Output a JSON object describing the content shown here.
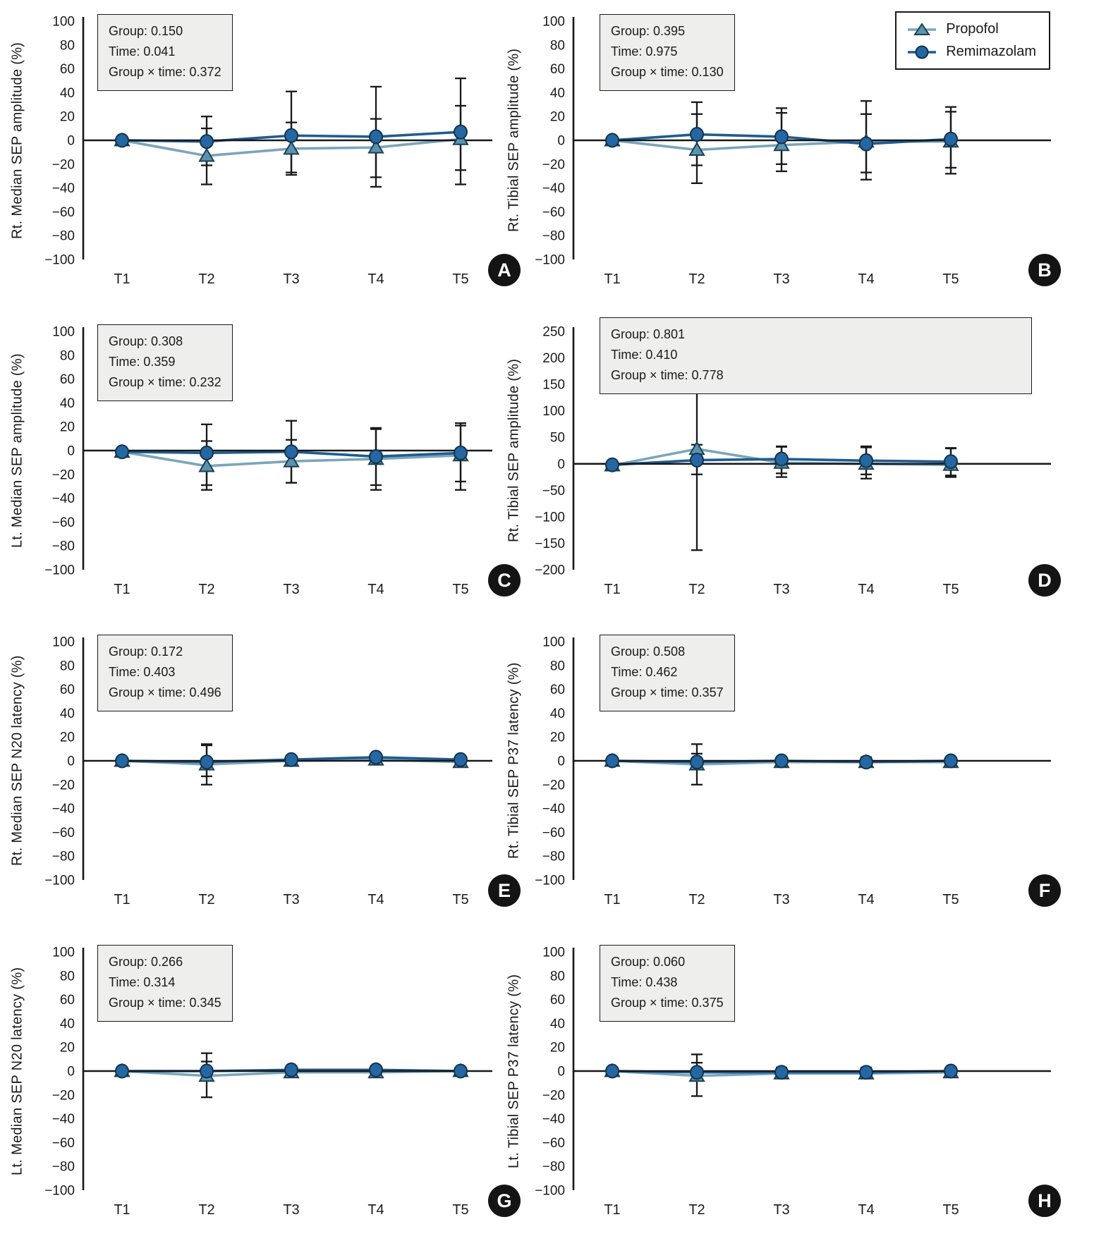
{
  "figure": {
    "background": "#ffffff"
  },
  "legend": {
    "position": "top-right-of-panel-B",
    "items": [
      {
        "label": "Propofol",
        "series": "propofol"
      },
      {
        "label": "Remimazolam",
        "series": "remimazolam"
      }
    ]
  },
  "series_styles": {
    "propofol": {
      "marker": "triangle",
      "line_color": "#7aa6ba",
      "fill": "#5b93ad",
      "stroke": "#1c3f54"
    },
    "remimazolam": {
      "marker": "circle",
      "line_color": "#1e5c92",
      "fill": "#2467a2",
      "stroke": "#14324a"
    }
  },
  "axis": {
    "color": "#17181a",
    "error_bar_color": "#17181a"
  },
  "chart_data": [
    {
      "letter": "A",
      "type": "line",
      "ylabel": "Rt. Median SEP amplitude (%)",
      "ylim": [
        -100,
        100
      ],
      "ytick_step": 20,
      "grid": false,
      "x": [
        "T1",
        "T2",
        "T3",
        "T4",
        "T5"
      ],
      "stats": [
        "Group: 0.150",
        "Time: 0.041",
        "Group × time: 0.372"
      ],
      "series": [
        {
          "name": "Propofol",
          "key": "propofol",
          "values": [
            0,
            -13,
            -7,
            -6,
            1
          ],
          "err": [
            [
              0,
              0
            ],
            [
              -21,
              10
            ],
            [
              -29,
              15
            ],
            [
              -31,
              18
            ],
            [
              -25,
              29
            ]
          ]
        },
        {
          "name": "Remimazolam",
          "key": "remimazolam",
          "values": [
            0,
            -1,
            4,
            3,
            7
          ],
          "err": [
            [
              0,
              0
            ],
            [
              -37,
              20
            ],
            [
              -27,
              41
            ],
            [
              -39,
              45
            ],
            [
              -37,
              52
            ]
          ]
        }
      ]
    },
    {
      "letter": "B",
      "type": "line",
      "ylabel": "Rt. Tibial SEP amplitude (%)",
      "ylim": [
        -100,
        100
      ],
      "ytick_step": 20,
      "grid": false,
      "x": [
        "T1",
        "T2",
        "T3",
        "T4",
        "T5"
      ],
      "stats": [
        "Group: 0.395",
        "Time: 0.975",
        "Group × time: 0.130"
      ],
      "series": [
        {
          "name": "Propofol",
          "key": "propofol",
          "values": [
            0,
            -8,
            -4,
            -1,
            -1
          ],
          "err": [
            [
              0,
              0
            ],
            [
              -36,
              22
            ],
            [
              -26,
              23
            ],
            [
              -27,
              22
            ],
            [
              -23,
              24
            ]
          ]
        },
        {
          "name": "Remimazolam",
          "key": "remimazolam",
          "values": [
            0,
            5,
            3,
            -3,
            1
          ],
          "err": [
            [
              0,
              0
            ],
            [
              -21,
              32
            ],
            [
              -20,
              27
            ],
            [
              -33,
              33
            ],
            [
              -28,
              28
            ]
          ]
        }
      ]
    },
    {
      "letter": "C",
      "type": "line",
      "ylabel": "Lt. Median SEP amplitude (%)",
      "ylim": [
        -100,
        100
      ],
      "ytick_step": 20,
      "grid": false,
      "x": [
        "T1",
        "T2",
        "T3",
        "T4",
        "T5"
      ],
      "stats": [
        "Group: 0.308",
        "Time: 0.359",
        "Group × time: 0.232"
      ],
      "series": [
        {
          "name": "Propofol",
          "key": "propofol",
          "values": [
            -1,
            -13,
            -9,
            -7,
            -4
          ],
          "err": [
            [
              0,
              0
            ],
            [
              -33,
              8
            ],
            [
              -27,
              9
            ],
            [
              -33,
              18
            ],
            [
              -33,
              21
            ]
          ]
        },
        {
          "name": "Remimazolam",
          "key": "remimazolam",
          "values": [
            -1,
            -2,
            -1,
            -5,
            -2
          ],
          "err": [
            [
              0,
              0
            ],
            [
              -29,
              22
            ],
            [
              -27,
              25
            ],
            [
              -29,
              19
            ],
            [
              -26,
              23
            ]
          ]
        }
      ]
    },
    {
      "letter": "D",
      "type": "line",
      "ylabel": "Rt. Tibial SEP amplitude (%)",
      "ylim": [
        -200,
        250
      ],
      "ytick_step": 50,
      "grid": false,
      "x": [
        "T1",
        "T2",
        "T3",
        "T4",
        "T5"
      ],
      "stats": [
        "Group: 0.801",
        "Time: 0.410",
        "Group × time: 0.778"
      ],
      "series": [
        {
          "name": "Propofol",
          "key": "propofol",
          "values": [
            -3,
            28,
            2,
            0,
            -2
          ],
          "err": [
            [
              0,
              0
            ],
            [
              -163,
              220
            ],
            [
              -25,
              33
            ],
            [
              -28,
              33
            ],
            [
              -25,
              30
            ]
          ]
        },
        {
          "name": "Remimazolam",
          "key": "remimazolam",
          "values": [
            -2,
            7,
            9,
            6,
            4
          ],
          "err": [
            [
              0,
              0
            ],
            [
              -20,
              36
            ],
            [
              -18,
              32
            ],
            [
              -20,
              31
            ],
            [
              -22,
              29
            ]
          ]
        }
      ]
    },
    {
      "letter": "E",
      "type": "line",
      "ylabel": "Rt. Median SEP N20 latency (%)",
      "ylim": [
        -100,
        100
      ],
      "ytick_step": 20,
      "grid": false,
      "x": [
        "T1",
        "T2",
        "T3",
        "T4",
        "T5"
      ],
      "stats": [
        "Group: 0.172",
        "Time: 0.403",
        "Group × time: 0.496"
      ],
      "series": [
        {
          "name": "Propofol",
          "key": "propofol",
          "values": [
            0,
            -3,
            0,
            1,
            -1
          ],
          "err": [
            [
              0,
              0
            ],
            [
              -20,
              13
            ],
            [
              -3,
              3
            ],
            [
              -3,
              4
            ],
            [
              -3,
              3
            ]
          ]
        },
        {
          "name": "Remimazolam",
          "key": "remimazolam",
          "values": [
            0,
            -1,
            1,
            3,
            1
          ],
          "err": [
            [
              0,
              0
            ],
            [
              -13,
              14
            ],
            [
              -3,
              4
            ],
            [
              -2,
              5
            ],
            [
              -3,
              4
            ]
          ]
        }
      ]
    },
    {
      "letter": "F",
      "type": "line",
      "ylabel": "Rt. Tibial SEP P37 latency (%)",
      "ylim": [
        -100,
        100
      ],
      "ytick_step": 20,
      "grid": false,
      "x": [
        "T1",
        "T2",
        "T3",
        "T4",
        "T5"
      ],
      "stats": [
        "Group: 0.508",
        "Time: 0.462",
        "Group × time: 0.357"
      ],
      "series": [
        {
          "name": "Propofol",
          "key": "propofol",
          "values": [
            0,
            -3,
            -1,
            -1,
            -1
          ],
          "err": [
            [
              0,
              0
            ],
            [
              -20,
              14
            ],
            [
              -4,
              3
            ],
            [
              -4,
              3
            ],
            [
              -4,
              3
            ]
          ]
        },
        {
          "name": "Remimazolam",
          "key": "remimazolam",
          "values": [
            0,
            -1,
            0,
            -1,
            0
          ],
          "err": [
            [
              0,
              0
            ],
            [
              -6,
              6
            ],
            [
              -3,
              3
            ],
            [
              -3,
              3
            ],
            [
              -3,
              3
            ]
          ]
        }
      ]
    },
    {
      "letter": "G",
      "type": "line",
      "ylabel": "Lt. Median SEP N20 latency (%)",
      "ylim": [
        -100,
        100
      ],
      "ytick_step": 20,
      "grid": false,
      "x": [
        "T1",
        "T2",
        "T3",
        "T4",
        "T5"
      ],
      "stats": [
        "Group: 0.266",
        "Time: 0.314",
        "Group × time: 0.345"
      ],
      "series": [
        {
          "name": "Propofol",
          "key": "propofol",
          "values": [
            0,
            -4,
            -1,
            -1,
            0
          ],
          "err": [
            [
              0,
              0
            ],
            [
              -22,
              15
            ],
            [
              -4,
              3
            ],
            [
              -4,
              3
            ],
            [
              -3,
              3
            ]
          ]
        },
        {
          "name": "Remimazolam",
          "key": "remimazolam",
          "values": [
            0,
            0,
            1,
            1,
            0
          ],
          "err": [
            [
              0,
              0
            ],
            [
              -8,
              8
            ],
            [
              -3,
              4
            ],
            [
              -3,
              4
            ],
            [
              -3,
              3
            ]
          ]
        }
      ]
    },
    {
      "letter": "H",
      "type": "line",
      "ylabel": "Lt. Tibial SEP P37 latency (%)",
      "ylim": [
        -100,
        100
      ],
      "ytick_step": 20,
      "grid": false,
      "x": [
        "T1",
        "T2",
        "T3",
        "T4",
        "T5"
      ],
      "stats": [
        "Group: 0.060",
        "Time: 0.438",
        "Group × time: 0.375"
      ],
      "series": [
        {
          "name": "Propofol",
          "key": "propofol",
          "values": [
            0,
            -4,
            -2,
            -2,
            -1
          ],
          "err": [
            [
              0,
              0
            ],
            [
              -21,
              14
            ],
            [
              -5,
              2
            ],
            [
              -5,
              2
            ],
            [
              -4,
              3
            ]
          ]
        },
        {
          "name": "Remimazolam",
          "key": "remimazolam",
          "values": [
            0,
            -1,
            -1,
            -1,
            0
          ],
          "err": [
            [
              0,
              0
            ],
            [
              -7,
              7
            ],
            [
              -4,
              3
            ],
            [
              -4,
              3
            ],
            [
              -3,
              3
            ]
          ]
        }
      ]
    }
  ]
}
